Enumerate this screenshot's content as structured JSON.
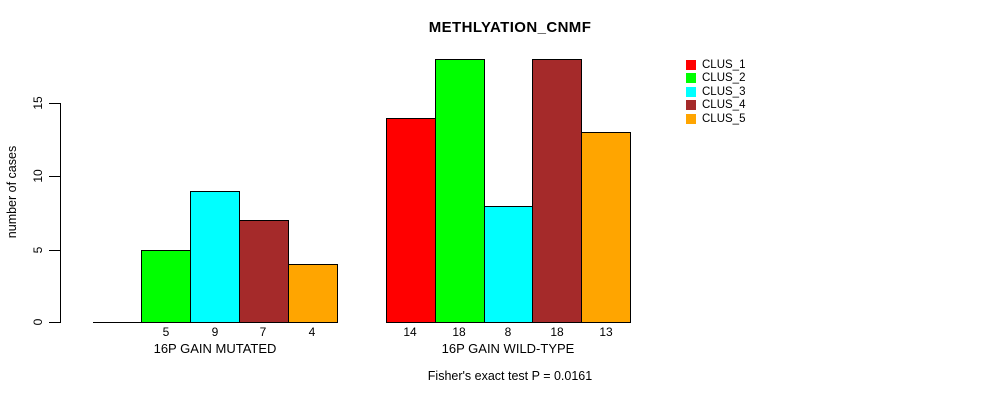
{
  "chart_data": {
    "type": "bar",
    "title": "METHLYATION_CNMF",
    "ylabel": "number of cases",
    "xlabel": "",
    "ylim": [
      0,
      15
    ],
    "yticks": [
      0,
      5,
      10,
      15
    ],
    "grid": false,
    "legend_position": "top-right",
    "annotation": "Fisher's exact test P = 0.0161",
    "categories": [
      "16P GAIN MUTATED",
      "16P GAIN WILD-TYPE"
    ],
    "series": [
      {
        "name": "CLUS_1",
        "color": "#FF0000",
        "values": [
          0,
          14
        ]
      },
      {
        "name": "CLUS_2",
        "color": "#00FF00",
        "values": [
          5,
          18
        ]
      },
      {
        "name": "CLUS_3",
        "color": "#00FFFF",
        "values": [
          9,
          8
        ]
      },
      {
        "name": "CLUS_4",
        "color": "#A52A2A",
        "values": [
          7,
          18
        ]
      },
      {
        "name": "CLUS_5",
        "color": "#FFA500",
        "values": [
          4,
          13
        ]
      }
    ],
    "bar_value_labels": [
      [
        "",
        "5",
        "9",
        "7",
        "4"
      ],
      [
        "14",
        "18",
        "8",
        "18",
        "13"
      ]
    ]
  }
}
